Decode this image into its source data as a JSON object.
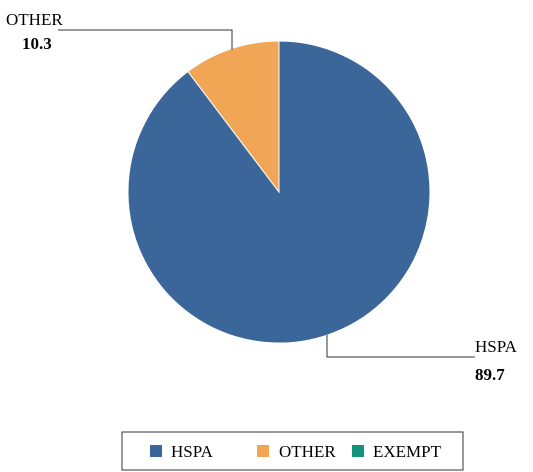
{
  "chart_data": {
    "type": "pie",
    "title": "",
    "slices": [
      {
        "label": "HSPA",
        "value": 89.7,
        "color": "#3A6699"
      },
      {
        "label": "OTHER",
        "value": 10.3,
        "color": "#F0A654"
      },
      {
        "label": "EXEMPT",
        "value": 0,
        "color": "#12937C"
      }
    ],
    "legend": {
      "placement": "bottom",
      "entries": [
        "HSPA",
        "OTHER",
        "EXEMPT"
      ]
    },
    "callouts": [
      {
        "label": "OTHER",
        "value": "10.3"
      },
      {
        "label": "HSPA",
        "value": "89.7"
      }
    ]
  }
}
